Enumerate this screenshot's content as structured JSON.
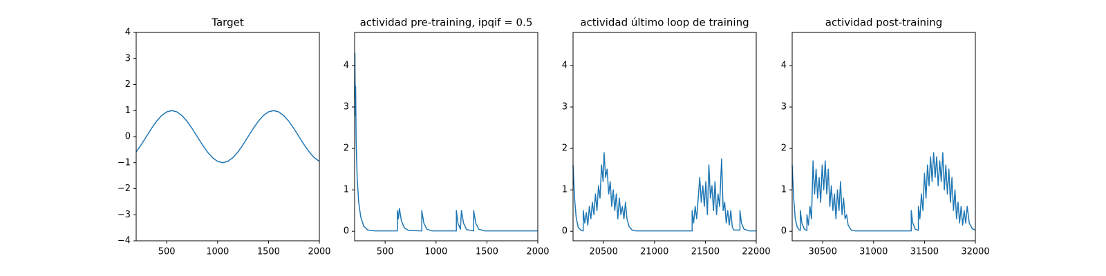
{
  "chart_data": [
    {
      "type": "line",
      "title": "Target",
      "color": "#1f77b4",
      "x": [
        200,
        250,
        300,
        350,
        400,
        450,
        500,
        550,
        600,
        650,
        700,
        750,
        800,
        850,
        900,
        950,
        1000,
        1050,
        1100,
        1150,
        1200,
        1250,
        1300,
        1350,
        1400,
        1450,
        1500,
        1550,
        1600,
        1650,
        1700,
        1750,
        1800,
        1850,
        1900,
        1950,
        2000
      ],
      "values": [
        -0.588,
        -0.309,
        0,
        0.309,
        0.588,
        0.809,
        0.951,
        1,
        0.951,
        0.809,
        0.588,
        0.309,
        0,
        -0.309,
        -0.588,
        -0.809,
        -0.951,
        -1,
        -0.951,
        -0.809,
        -0.588,
        -0.309,
        0,
        0.309,
        0.588,
        0.809,
        0.951,
        1,
        0.951,
        0.809,
        0.588,
        0.309,
        0,
        -0.309,
        -0.588,
        -0.809,
        -0.951
      ],
      "xlim": [
        200,
        2000
      ],
      "xticks": [
        500,
        1000,
        1500,
        2000
      ],
      "ylim": [
        -4,
        4
      ],
      "yticks": [
        {
          "value": -4,
          "label": "−4"
        },
        {
          "value": -3,
          "label": "−3"
        },
        {
          "value": -2,
          "label": "−2"
        },
        {
          "value": -1,
          "label": "−1"
        },
        0,
        1,
        2,
        3,
        4
      ]
    },
    {
      "type": "line",
      "title": "actividad pre-training, ipqif = 0.5",
      "color": "#1f77b4",
      "x": [
        200,
        203,
        207,
        210,
        215,
        225,
        240,
        260,
        290,
        330,
        400,
        620,
        620,
        630,
        640,
        660,
        690,
        730,
        860,
        860,
        880,
        910,
        960,
        1200,
        1200,
        1215,
        1240,
        1250,
        1270,
        1300,
        1370,
        1370,
        1390,
        1420,
        1480,
        2000
      ],
      "values": [
        3.2,
        4.3,
        2.8,
        3.5,
        2.2,
        1.3,
        0.7,
        0.35,
        0.12,
        0.03,
        0.01,
        0.01,
        0.5,
        0.3,
        0.55,
        0.25,
        0.08,
        0.02,
        0.01,
        0.5,
        0.2,
        0.05,
        0.01,
        0.01,
        0.5,
        0.2,
        0.05,
        0.5,
        0.2,
        0.04,
        0.01,
        0.5,
        0.2,
        0.05,
        0.01,
        0.01
      ],
      "xlim": [
        200,
        2000
      ],
      "xticks": [
        500,
        1000,
        1500,
        2000
      ],
      "ylim": [
        -0.23,
        4.8
      ],
      "yticks": [
        0,
        1,
        2,
        3,
        4
      ]
    },
    {
      "type": "line",
      "title": "actividad último loop de training",
      "color": "#1f77b4",
      "x": [
        20200,
        20215,
        20230,
        20250,
        20280,
        20300,
        20300,
        20315,
        20330,
        20345,
        20360,
        20375,
        20390,
        20405,
        20420,
        20435,
        20450,
        20465,
        20480,
        20495,
        20505,
        20520,
        20535,
        20550,
        20565,
        20580,
        20595,
        20610,
        20625,
        20640,
        20655,
        20670,
        20685,
        20700,
        20715,
        20730,
        20750,
        20780,
        20820,
        21370,
        21370,
        21385,
        21400,
        21415,
        21430,
        21445,
        21460,
        21475,
        21490,
        21505,
        21520,
        21535,
        21550,
        21565,
        21580,
        21595,
        21610,
        21625,
        21640,
        21660,
        21675,
        21690,
        21705,
        21720,
        21735,
        21750,
        21765,
        21780,
        21840,
        21840,
        21855,
        21880,
        21930,
        22000
      ],
      "values": [
        1.6,
        0.8,
        0.35,
        0.1,
        0.02,
        0.01,
        0.5,
        0.2,
        0.45,
        0.15,
        0.6,
        0.3,
        0.7,
        0.4,
        0.9,
        0.5,
        1.1,
        0.8,
        1.6,
        1.2,
        1.9,
        1.3,
        1.5,
        0.9,
        1.2,
        0.6,
        1.0,
        0.5,
        0.9,
        0.3,
        0.8,
        0.4,
        0.6,
        0.3,
        0.7,
        0.3,
        0.12,
        0.03,
        0.01,
        0.01,
        0.5,
        0.2,
        0.6,
        0.3,
        0.8,
        1.3,
        0.7,
        1.1,
        0.6,
        1.2,
        0.4,
        1.6,
        0.8,
        1.1,
        0.5,
        1.2,
        0.4,
        0.9,
        0.6,
        1.75,
        0.5,
        0.7,
        0.2,
        0.5,
        0.15,
        0.5,
        0.1,
        0.03,
        0.03,
        0.5,
        0.2,
        0.05,
        0.01,
        0.01
      ],
      "xlim": [
        20200,
        22000
      ],
      "xticks": [
        20500,
        21000,
        21500,
        22000
      ],
      "ylim": [
        -0.23,
        4.8
      ],
      "yticks": [
        0,
        1,
        2,
        3,
        4
      ]
    },
    {
      "type": "line",
      "title": "actividad post-training",
      "color": "#1f77b4",
      "x": [
        30200,
        30215,
        30230,
        30250,
        30270,
        30280,
        30280,
        30295,
        30320,
        30345,
        30345,
        30360,
        30375,
        30390,
        30405,
        30420,
        30435,
        30450,
        30465,
        30480,
        30495,
        30510,
        30525,
        30540,
        30555,
        30570,
        30585,
        30600,
        30615,
        30630,
        30645,
        30660,
        30675,
        30690,
        30705,
        30720,
        30735,
        30750,
        30780,
        30820,
        31370,
        31370,
        31385,
        31410,
        31440,
        31440,
        31455,
        31470,
        31485,
        31500,
        31515,
        31530,
        31545,
        31560,
        31575,
        31590,
        31605,
        31620,
        31635,
        31650,
        31665,
        31680,
        31695,
        31710,
        31725,
        31740,
        31755,
        31770,
        31785,
        31800,
        31815,
        31830,
        31845,
        31860,
        31875,
        31890,
        31905,
        31920,
        31940,
        31970,
        32000
      ],
      "values": [
        1.6,
        0.8,
        0.3,
        0.1,
        0.03,
        0.02,
        0.5,
        0.2,
        0.05,
        0.02,
        0.4,
        0.15,
        0.6,
        0.3,
        1.7,
        0.9,
        1.5,
        0.8,
        1.3,
        0.7,
        1.6,
        1.0,
        1.7,
        0.9,
        1.5,
        0.6,
        1.1,
        0.5,
        0.9,
        0.3,
        1.0,
        0.5,
        1.2,
        0.4,
        0.8,
        0.3,
        0.4,
        0.15,
        0.03,
        0.01,
        0.01,
        0.5,
        0.2,
        0.05,
        0.02,
        0.6,
        0.3,
        0.9,
        0.5,
        1.4,
        0.8,
        1.6,
        1.1,
        1.8,
        1.2,
        1.9,
        1.3,
        1.8,
        1.1,
        1.7,
        1.2,
        1.9,
        1.0,
        1.6,
        0.9,
        1.5,
        0.7,
        1.3,
        0.5,
        1.0,
        0.3,
        0.7,
        0.2,
        0.6,
        0.15,
        0.5,
        0.2,
        0.6,
        0.2,
        0.06,
        0.03
      ],
      "xlim": [
        30200,
        32000
      ],
      "xticks": [
        30500,
        31000,
        31500,
        32000
      ],
      "ylim": [
        -0.23,
        4.8
      ],
      "yticks": [
        0,
        1,
        2,
        3,
        4
      ]
    }
  ]
}
